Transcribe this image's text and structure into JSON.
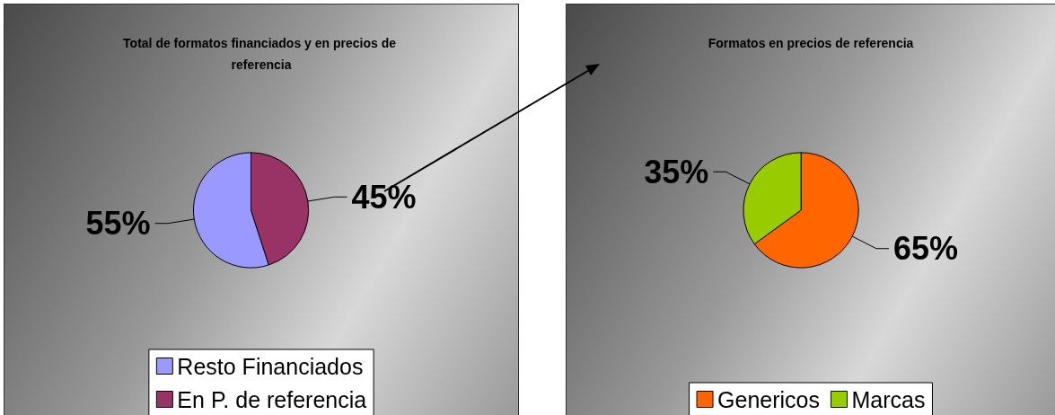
{
  "chart_data": [
    {
      "type": "pie",
      "title": "Total de formatos financiados y en precios de referencia",
      "categories": [
        "Resto Financiados",
        "En P. de referencia"
      ],
      "values": [
        55,
        45
      ],
      "colors": [
        "#9999ff",
        "#993366"
      ],
      "value_labels": [
        "55%",
        "45%"
      ],
      "legend": "bottom"
    },
    {
      "type": "pie",
      "title": "Formatos en precios de referencia",
      "categories": [
        "Genericos",
        "Marcas"
      ],
      "values": [
        65,
        35
      ],
      "colors": [
        "#ff6600",
        "#99cc00"
      ],
      "value_labels": [
        "65%",
        "35%"
      ],
      "legend": "bottom"
    }
  ]
}
